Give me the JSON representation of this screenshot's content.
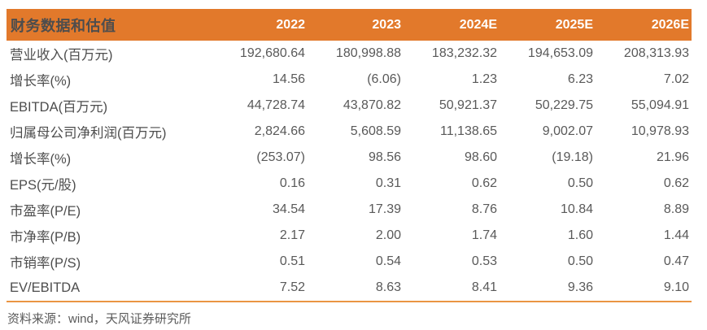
{
  "table": {
    "header": {
      "label": "财务数据和估值",
      "columns": [
        "2022",
        "2023",
        "2024E",
        "2025E",
        "2026E"
      ]
    },
    "rows": [
      {
        "label": "营业收入(百万元)",
        "values": [
          "192,680.64",
          "180,998.88",
          "183,232.32",
          "194,653.09",
          "208,313.93"
        ]
      },
      {
        "label": "增长率(%)",
        "values": [
          "14.56",
          "(6.06)",
          "1.23",
          "6.23",
          "7.02"
        ]
      },
      {
        "label": "EBITDA(百万元)",
        "values": [
          "44,728.74",
          "43,870.82",
          "50,921.37",
          "50,229.75",
          "55,094.91"
        ]
      },
      {
        "label": "归属母公司净利润(百万元)",
        "values": [
          "2,824.66",
          "5,608.59",
          "11,138.65",
          "9,002.07",
          "10,978.93"
        ]
      },
      {
        "label": "增长率(%)",
        "values": [
          "(253.07)",
          "98.56",
          "98.60",
          "(19.18)",
          "21.96"
        ]
      },
      {
        "label": "EPS(元/股)",
        "values": [
          "0.16",
          "0.31",
          "0.62",
          "0.50",
          "0.62"
        ]
      },
      {
        "label": "市盈率(P/E)",
        "values": [
          "34.54",
          "17.39",
          "8.76",
          "10.84",
          "8.89"
        ]
      },
      {
        "label": "市净率(P/B)",
        "values": [
          "2.17",
          "2.00",
          "1.74",
          "1.60",
          "1.44"
        ]
      },
      {
        "label": "市销率(P/S)",
        "values": [
          "0.51",
          "0.54",
          "0.53",
          "0.50",
          "0.47"
        ]
      },
      {
        "label": "EV/EBITDA",
        "values": [
          "7.52",
          "8.63",
          "8.41",
          "9.36",
          "9.10"
        ]
      }
    ]
  },
  "footer": {
    "source": "资料来源：wind，天风证券研究所"
  },
  "colors": {
    "header_bg": "#E2792B",
    "header_text": "#FFFFFF",
    "label_text": "#4D4D4D",
    "value_text": "#595959",
    "bottom_rule": "#EA9543"
  }
}
